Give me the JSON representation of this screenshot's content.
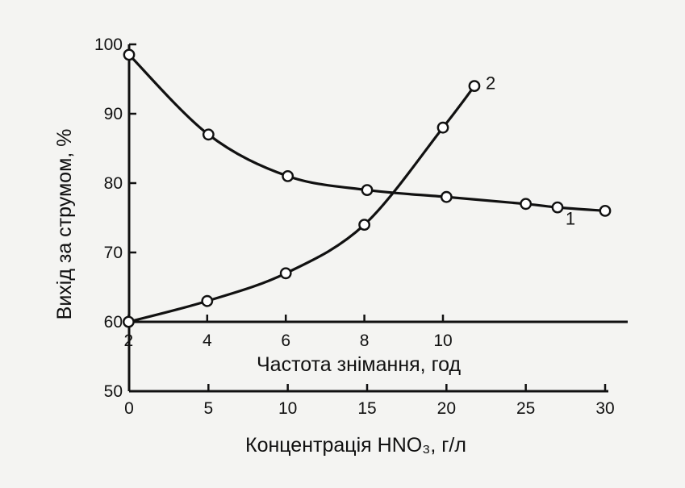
{
  "chart_data": {
    "type": "line",
    "ylabel": "Вихід за струмом, %",
    "xlabel_bottom": "Концентрація HNO₃, г/л",
    "xlabel_top": "Частота знімання, год",
    "y_ticks": [
      "100",
      "90",
      "80",
      "70",
      "60",
      "50"
    ],
    "x_ticks_bottom": [
      "0",
      "5",
      "10",
      "15",
      "20",
      "25",
      "30"
    ],
    "x_ticks_top": [
      "2",
      "4",
      "6",
      "8",
      "10"
    ],
    "ylim": [
      50,
      100
    ],
    "xlim_bottom": [
      0,
      30
    ],
    "xlim_top": [
      0,
      12
    ],
    "top_axis_baseline": 60,
    "grid": false,
    "series": [
      {
        "name": "1",
        "axis": "bottom",
        "color": "#111111",
        "x": [
          0,
          5,
          10,
          15,
          20,
          25,
          27,
          30
        ],
        "y": [
          98.5,
          87,
          81,
          79,
          78,
          77,
          76.5,
          76
        ]
      },
      {
        "name": "2",
        "axis": "top",
        "color": "#111111",
        "x": [
          2,
          4,
          6,
          8,
          10,
          10.8
        ],
        "y": [
          60,
          63,
          67,
          74,
          88,
          94
        ]
      }
    ]
  }
}
